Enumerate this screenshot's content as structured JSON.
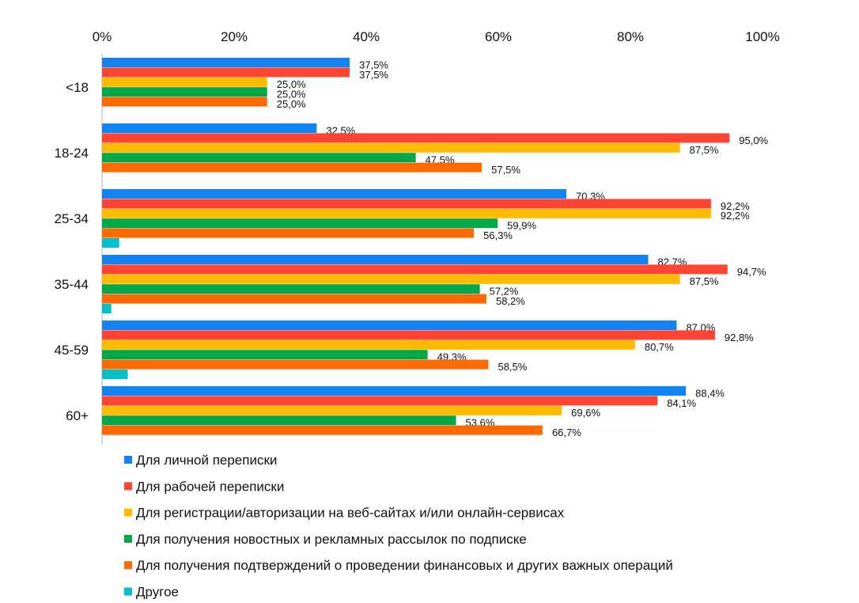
{
  "chart_data": {
    "type": "bar",
    "orientation": "horizontal",
    "title": "",
    "xlabel": "",
    "ylabel": "",
    "xlim": [
      0,
      100
    ],
    "x_ticks": [
      "0%",
      "20%",
      "40%",
      "60%",
      "80%",
      "100%"
    ],
    "x_tick_values": [
      0,
      20,
      40,
      60,
      80,
      100
    ],
    "grid": false,
    "legend_position": "bottom",
    "categories": [
      "<18",
      "18-24",
      "25-34",
      "35-44",
      "45-59",
      "60+"
    ],
    "series": [
      {
        "name": "Для личной переписки",
        "color": "#1283f3",
        "values": [
          37.5,
          32.5,
          70.3,
          82.7,
          87.0,
          88.4
        ],
        "labels": [
          "37,5%",
          "32,5%",
          "70,3%",
          "82,7%",
          "87,0%",
          "88,4%"
        ]
      },
      {
        "name": "Для рабочей переписки",
        "color": "#ff4433",
        "values": [
          37.5,
          95.0,
          92.2,
          94.7,
          92.8,
          84.1
        ],
        "labels": [
          "37,5%",
          "95,0%",
          "92,2%",
          "94,7%",
          "92,8%",
          "84,1%"
        ]
      },
      {
        "name": "Для регистрации/авторизации на веб-сайтах и/или онлайн-сервисах",
        "color": "#ffbb00",
        "values": [
          25.0,
          87.5,
          92.2,
          87.5,
          80.7,
          69.6
        ],
        "labels": [
          "25,0%",
          "87,5%",
          "92,2%",
          "87,5%",
          "80,7%",
          "69,6%"
        ]
      },
      {
        "name": "Для получения новостных и рекламных рассылок по подписке",
        "color": "#00a84a",
        "values": [
          25.0,
          47.5,
          59.9,
          57.2,
          49.3,
          53.6
        ],
        "labels": [
          "25,0%",
          "47,5%",
          "59,9%",
          "57,2%",
          "49,3%",
          "53,6%"
        ]
      },
      {
        "name": "Для получения подтверждений о проведении финансовых и других важных операций",
        "color": "#ff6a00",
        "values": [
          25.0,
          57.5,
          56.3,
          58.2,
          58.5,
          66.7
        ],
        "labels": [
          "25,0%",
          "57,5%",
          "56,3%",
          "58,2%",
          "58,5%",
          "66,7%"
        ]
      },
      {
        "name": "Другое",
        "color": "#00c0cc",
        "values": [
          0,
          0,
          2.6,
          1.4,
          3.9,
          0
        ],
        "labels": [
          null,
          null,
          null,
          null,
          null,
          null
        ]
      }
    ]
  }
}
